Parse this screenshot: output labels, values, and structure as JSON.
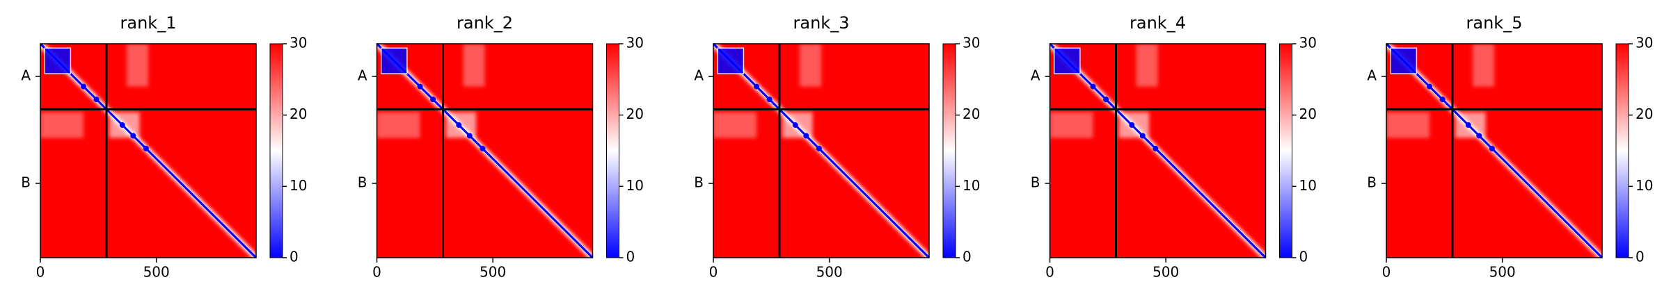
{
  "chart_data": [
    {
      "type": "heatmap",
      "title": "rank_1",
      "xlim": [
        0,
        930
      ],
      "ylim": [
        930,
        0
      ],
      "xticks": [
        0,
        500
      ],
      "yticks": [
        {
          "value": 142,
          "label": "A"
        },
        {
          "value": 607,
          "label": "B"
        }
      ],
      "chain_boundaries": [
        285
      ],
      "clim": [
        0,
        30
      ],
      "cbar_ticks": [
        0,
        10,
        20,
        30
      ],
      "colormap": [
        "#0000ff",
        "#ffffff",
        "#ff0000"
      ]
    },
    {
      "type": "heatmap",
      "title": "rank_2",
      "xlim": [
        0,
        930
      ],
      "ylim": [
        930,
        0
      ],
      "xticks": [
        0,
        500
      ],
      "yticks": [
        {
          "value": 142,
          "label": "A"
        },
        {
          "value": 607,
          "label": "B"
        }
      ],
      "chain_boundaries": [
        285
      ],
      "clim": [
        0,
        30
      ],
      "cbar_ticks": [
        0,
        10,
        20,
        30
      ],
      "colormap": [
        "#0000ff",
        "#ffffff",
        "#ff0000"
      ]
    },
    {
      "type": "heatmap",
      "title": "rank_3",
      "xlim": [
        0,
        930
      ],
      "ylim": [
        930,
        0
      ],
      "xticks": [
        0,
        500
      ],
      "yticks": [
        {
          "value": 142,
          "label": "A"
        },
        {
          "value": 607,
          "label": "B"
        }
      ],
      "chain_boundaries": [
        285
      ],
      "clim": [
        0,
        30
      ],
      "cbar_ticks": [
        0,
        10,
        20,
        30
      ],
      "colormap": [
        "#0000ff",
        "#ffffff",
        "#ff0000"
      ]
    },
    {
      "type": "heatmap",
      "title": "rank_4",
      "xlim": [
        0,
        930
      ],
      "ylim": [
        930,
        0
      ],
      "xticks": [
        0,
        500
      ],
      "yticks": [
        {
          "value": 142,
          "label": "A"
        },
        {
          "value": 607,
          "label": "B"
        }
      ],
      "chain_boundaries": [
        285
      ],
      "clim": [
        0,
        30
      ],
      "cbar_ticks": [
        0,
        10,
        20,
        30
      ],
      "colormap": [
        "#0000ff",
        "#ffffff",
        "#ff0000"
      ]
    },
    {
      "type": "heatmap",
      "title": "rank_5",
      "xlim": [
        0,
        930
      ],
      "ylim": [
        930,
        0
      ],
      "xticks": [
        0,
        500
      ],
      "yticks": [
        {
          "value": 142,
          "label": "A"
        },
        {
          "value": 607,
          "label": "B"
        }
      ],
      "chain_boundaries": [
        285
      ],
      "clim": [
        0,
        30
      ],
      "cbar_ticks": [
        0,
        10,
        20,
        30
      ],
      "colormap": [
        "#0000ff",
        "#ffffff",
        "#ff0000"
      ]
    }
  ]
}
